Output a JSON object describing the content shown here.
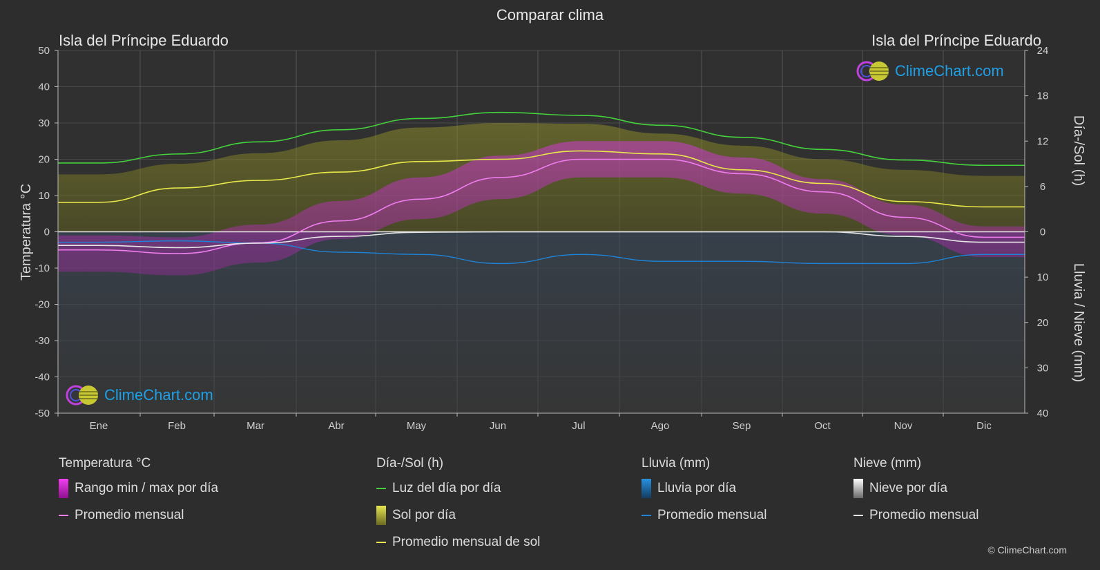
{
  "title": "Comparar clima",
  "location_left": "Isla del Príncipe Eduardo",
  "location_right": "Isla del Príncipe Eduardo",
  "axis_left_title": "Temperatura °C",
  "axis_right_top_title": "Día-/Sol (h)",
  "axis_right_bottom_title": "Lluvia / Nieve (mm)",
  "logo_text": "ClimeChart.com",
  "copyright": "© ClimeChart.com",
  "colors": {
    "background": "#2d2d2d",
    "daylight": "#44d23c",
    "sunshine_avg": "#e8e84a",
    "temp_avg": "#f07ef0",
    "temp_range": "#e020e0",
    "rain": "#1e84d8",
    "snow_avg": "#e6e6e6",
    "logo": "#1ea0e6"
  },
  "legend": {
    "temperature": {
      "header": "Temperatura °C",
      "range": "Rango min / max por día",
      "avg": "Promedio mensual"
    },
    "sun": {
      "header": "Día-/Sol (h)",
      "daylight": "Luz del día por día",
      "sunshine": "Sol por día",
      "avg": "Promedio mensual de sol"
    },
    "rain": {
      "header": "Lluvia (mm)",
      "per_day": "Lluvia por día",
      "avg": "Promedio mensual"
    },
    "snow": {
      "header": "Nieve (mm)",
      "per_day": "Nieve por día",
      "avg": "Promedio mensual"
    }
  },
  "chart_data": {
    "type": "line",
    "categories": [
      "Ene",
      "Feb",
      "Mar",
      "Abr",
      "May",
      "Jun",
      "Jul",
      "Ago",
      "Sep",
      "Oct",
      "Nov",
      "Dic"
    ],
    "y_left": {
      "label": "Temperatura °C",
      "range": [
        -50,
        50
      ],
      "ticks": [
        50,
        40,
        30,
        20,
        10,
        0,
        -10,
        -20,
        -30,
        -40,
        -50
      ]
    },
    "y_right_top": {
      "label": "Día-/Sol (h)",
      "range": [
        0,
        24
      ],
      "ticks": [
        24,
        18,
        12,
        6,
        0
      ]
    },
    "y_right_bottom": {
      "label": "Lluvia / Nieve (mm)",
      "range": [
        0,
        40
      ],
      "ticks": [
        0,
        10,
        20,
        30,
        40
      ]
    },
    "grid": true,
    "series": [
      {
        "name": "Luz del día por día",
        "unit": "h",
        "values": [
          9.1,
          10.3,
          11.9,
          13.5,
          15.0,
          15.8,
          15.4,
          14.1,
          12.5,
          10.9,
          9.5,
          8.8
        ]
      },
      {
        "name": "Promedio mensual de sol",
        "unit": "h",
        "values": [
          3.9,
          5.8,
          6.8,
          7.9,
          9.3,
          9.6,
          10.7,
          10.3,
          8.2,
          6.4,
          4.0,
          3.3
        ]
      },
      {
        "name": "Sol por día",
        "unit": "h",
        "values": [
          7.6,
          9.0,
          10.4,
          12.1,
          13.8,
          14.4,
          14.3,
          13.0,
          11.4,
          9.6,
          8.2,
          7.4
        ]
      },
      {
        "name": "Promedio mensual",
        "unit": "°C",
        "values": [
          -5.0,
          -6.0,
          -3.0,
          3.0,
          9.0,
          15.0,
          20.0,
          20.0,
          16.0,
          11.0,
          4.0,
          -1.5
        ]
      },
      {
        "name": "Rango min / max por día (max)",
        "unit": "°C",
        "values": [
          -1.0,
          -1.5,
          2.0,
          8.5,
          15.0,
          21.0,
          25.0,
          25.0,
          20.5,
          14.5,
          7.5,
          1.5
        ]
      },
      {
        "name": "Rango min / max por día (min)",
        "unit": "°C",
        "values": [
          -11.0,
          -12.0,
          -8.5,
          -2.0,
          3.5,
          9.0,
          15.0,
          15.0,
          10.5,
          5.0,
          -1.0,
          -7.0
        ]
      },
      {
        "name": "Lluvia – Promedio mensual",
        "unit": "mm",
        "values": [
          2.3,
          2.0,
          2.5,
          4.5,
          5.0,
          7.0,
          5.0,
          6.5,
          6.5,
          7.0,
          7.0,
          5.0
        ]
      },
      {
        "name": "Nieve – Promedio mensual",
        "unit": "mm",
        "values": [
          3.0,
          3.5,
          2.5,
          1.0,
          0.1,
          0.0,
          0.0,
          0.0,
          0.0,
          0.0,
          1.0,
          2.3
        ]
      }
    ]
  }
}
